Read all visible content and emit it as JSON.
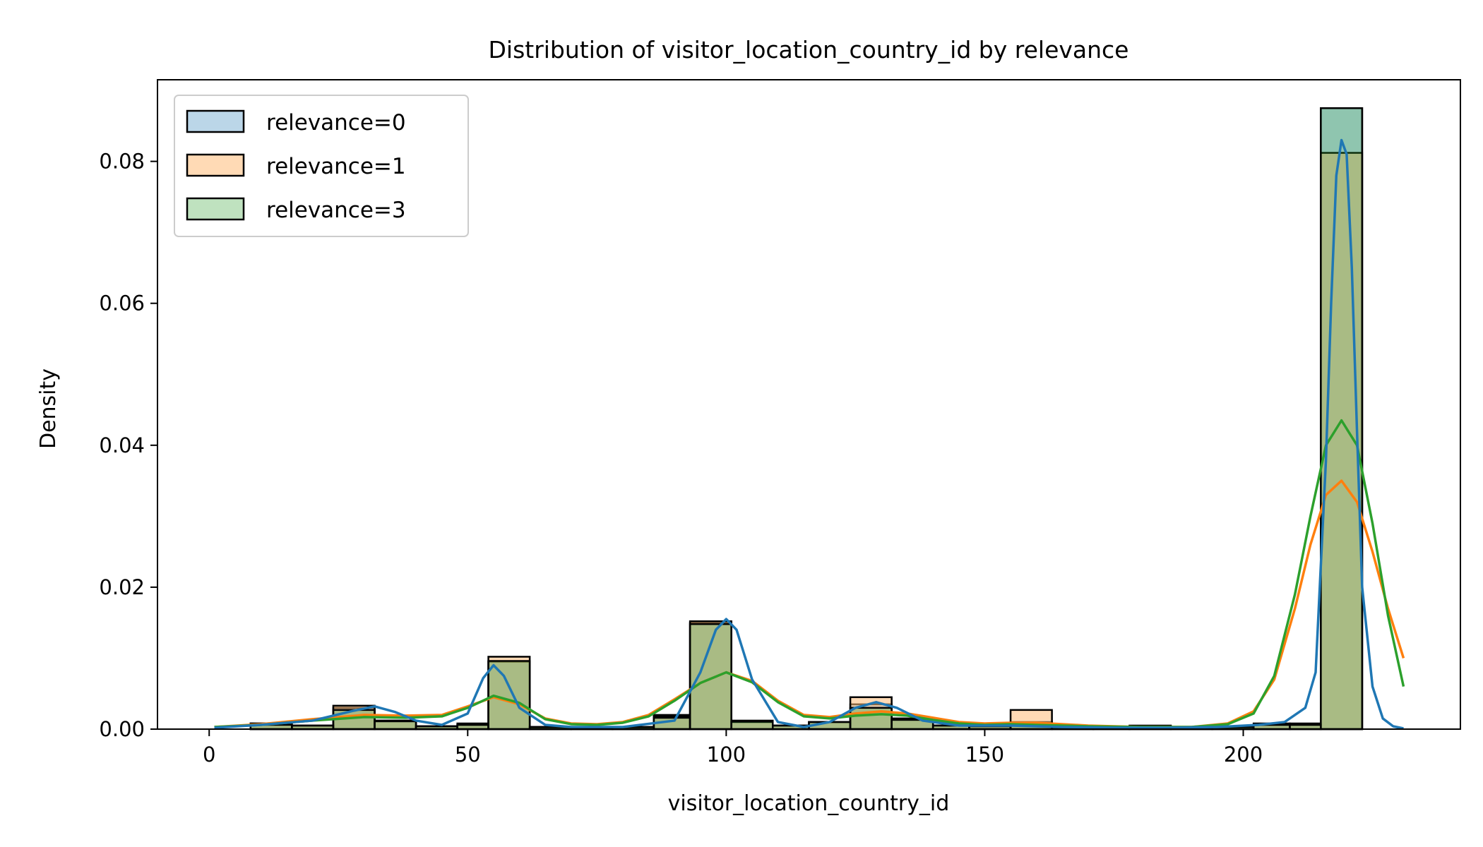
{
  "chart_data": {
    "type": "histogram",
    "title": "Distribution of visitor_location_country_id by relevance",
    "xlabel": "visitor_location_country_id",
    "ylabel": "Density",
    "xlim": [
      -10,
      242
    ],
    "ylim": [
      0,
      0.0915
    ],
    "x_ticks": [
      0,
      50,
      100,
      150,
      200
    ],
    "x_tick_labels": [
      "0",
      "50",
      "100",
      "150",
      "200"
    ],
    "y_ticks": [
      0.0,
      0.02,
      0.04,
      0.06,
      0.08
    ],
    "y_tick_labels": [
      "0.00",
      "0.02",
      "0.04",
      "0.06",
      "0.08"
    ],
    "grid": false,
    "legend_position": "upper-left",
    "series": [
      {
        "name": "relevance=0",
        "color": "#1f77b4",
        "fill": "#1f77b4",
        "bins": [
          {
            "x0": 8,
            "x1": 16,
            "y": 0.0008
          },
          {
            "x0": 16,
            "x1": 24,
            "y": 0.0005
          },
          {
            "x0": 24,
            "x1": 32,
            "y": 0.003
          },
          {
            "x0": 32,
            "x1": 40,
            "y": 0.0012
          },
          {
            "x0": 40,
            "x1": 48,
            "y": 0.0004
          },
          {
            "x0": 48,
            "x1": 54,
            "y": 0.0008
          },
          {
            "x0": 54,
            "x1": 62,
            "y": 0.0095
          },
          {
            "x0": 62,
            "x1": 70,
            "y": 0.0003
          },
          {
            "x0": 70,
            "x1": 78,
            "y": 0.0002
          },
          {
            "x0": 78,
            "x1": 86,
            "y": 0.0003
          },
          {
            "x0": 86,
            "x1": 93,
            "y": 0.002
          },
          {
            "x0": 93,
            "x1": 101,
            "y": 0.015
          },
          {
            "x0": 101,
            "x1": 109,
            "y": 0.0012
          },
          {
            "x0": 109,
            "x1": 116,
            "y": 0.0005
          },
          {
            "x0": 116,
            "x1": 124,
            "y": 0.001
          },
          {
            "x0": 124,
            "x1": 132,
            "y": 0.0035
          },
          {
            "x0": 132,
            "x1": 140,
            "y": 0.0015
          },
          {
            "x0": 140,
            "x1": 147,
            "y": 0.0005
          },
          {
            "x0": 147,
            "x1": 155,
            "y": 0.0005
          },
          {
            "x0": 155,
            "x1": 163,
            "y": 0.001
          },
          {
            "x0": 163,
            "x1": 171,
            "y": 0.0003
          },
          {
            "x0": 171,
            "x1": 178,
            "y": 0.0002
          },
          {
            "x0": 178,
            "x1": 186,
            "y": 0.0005
          },
          {
            "x0": 186,
            "x1": 194,
            "y": 0.0002
          },
          {
            "x0": 194,
            "x1": 202,
            "y": 0.0003
          },
          {
            "x0": 202,
            "x1": 209,
            "y": 0.0008
          },
          {
            "x0": 209,
            "x1": 215,
            "y": 0.0008
          },
          {
            "x0": 215,
            "x1": 223,
            "y": 0.0875
          }
        ],
        "kde": {
          "x": [
            1,
            10,
            20,
            28,
            32,
            36,
            40,
            45,
            50,
            53,
            55,
            57,
            60,
            65,
            70,
            80,
            90,
            95,
            98,
            100,
            102,
            105,
            110,
            115,
            120,
            125,
            129,
            133,
            138,
            145,
            155,
            165,
            175,
            185,
            195,
            203,
            208,
            212,
            214,
            216,
            217,
            218,
            219,
            220,
            221,
            222,
            223,
            225,
            227,
            229,
            231
          ],
          "y": [
            0.0002,
            0.0006,
            0.0012,
            0.0026,
            0.0032,
            0.0024,
            0.0012,
            0.0006,
            0.0022,
            0.0072,
            0.009,
            0.0075,
            0.003,
            0.0006,
            0.0003,
            0.0003,
            0.0012,
            0.008,
            0.014,
            0.0155,
            0.014,
            0.007,
            0.001,
            0.0003,
            0.001,
            0.003,
            0.0038,
            0.003,
            0.0012,
            0.0005,
            0.0005,
            0.0003,
            0.0002,
            0.0002,
            0.0003,
            0.0006,
            0.001,
            0.003,
            0.008,
            0.038,
            0.06,
            0.078,
            0.083,
            0.081,
            0.065,
            0.042,
            0.02,
            0.006,
            0.0015,
            0.0004,
            0.0001
          ]
        }
      },
      {
        "name": "relevance=1",
        "color": "#ff7f0e",
        "fill": "#ffbb78",
        "bins": [
          {
            "x0": 8,
            "x1": 16,
            "y": 0.0008
          },
          {
            "x0": 16,
            "x1": 24,
            "y": 0.0005
          },
          {
            "x0": 24,
            "x1": 32,
            "y": 0.0033
          },
          {
            "x0": 32,
            "x1": 40,
            "y": 0.0012
          },
          {
            "x0": 40,
            "x1": 48,
            "y": 0.0004
          },
          {
            "x0": 48,
            "x1": 54,
            "y": 0.0006
          },
          {
            "x0": 54,
            "x1": 62,
            "y": 0.0102
          },
          {
            "x0": 62,
            "x1": 70,
            "y": 0.0003
          },
          {
            "x0": 70,
            "x1": 78,
            "y": 0.0002
          },
          {
            "x0": 78,
            "x1": 86,
            "y": 0.0003
          },
          {
            "x0": 86,
            "x1": 93,
            "y": 0.0018
          },
          {
            "x0": 93,
            "x1": 101,
            "y": 0.0152
          },
          {
            "x0": 101,
            "x1": 109,
            "y": 0.001
          },
          {
            "x0": 109,
            "x1": 116,
            "y": 0.0005
          },
          {
            "x0": 116,
            "x1": 124,
            "y": 0.001
          },
          {
            "x0": 124,
            "x1": 132,
            "y": 0.0045
          },
          {
            "x0": 132,
            "x1": 140,
            "y": 0.0015
          },
          {
            "x0": 140,
            "x1": 147,
            "y": 0.0005
          },
          {
            "x0": 147,
            "x1": 155,
            "y": 0.0005
          },
          {
            "x0": 155,
            "x1": 163,
            "y": 0.0027
          },
          {
            "x0": 163,
            "x1": 171,
            "y": 0.0003
          },
          {
            "x0": 171,
            "x1": 178,
            "y": 0.0002
          },
          {
            "x0": 178,
            "x1": 186,
            "y": 0.0004
          },
          {
            "x0": 186,
            "x1": 194,
            "y": 0.0002
          },
          {
            "x0": 194,
            "x1": 202,
            "y": 0.0003
          },
          {
            "x0": 202,
            "x1": 209,
            "y": 0.0006
          },
          {
            "x0": 209,
            "x1": 215,
            "y": 0.0006
          },
          {
            "x0": 215,
            "x1": 223,
            "y": 0.0812
          }
        ],
        "kde": {
          "x": [
            1,
            10,
            20,
            30,
            38,
            45,
            50,
            55,
            60,
            65,
            70,
            75,
            80,
            85,
            90,
            95,
            100,
            105,
            110,
            115,
            120,
            125,
            130,
            135,
            140,
            145,
            150,
            155,
            160,
            170,
            180,
            190,
            197,
            202,
            206,
            210,
            213,
            216,
            219,
            222,
            225,
            228,
            231
          ],
          "y": [
            0.0003,
            0.0007,
            0.0014,
            0.002,
            0.0019,
            0.002,
            0.0032,
            0.0045,
            0.0035,
            0.0015,
            0.0008,
            0.0007,
            0.001,
            0.002,
            0.0042,
            0.0065,
            0.008,
            0.0068,
            0.004,
            0.002,
            0.0017,
            0.0022,
            0.0025,
            0.0022,
            0.0016,
            0.001,
            0.0008,
            0.0009,
            0.0009,
            0.0005,
            0.0003,
            0.0003,
            0.0008,
            0.0025,
            0.007,
            0.017,
            0.026,
            0.033,
            0.035,
            0.032,
            0.025,
            0.017,
            0.01
          ]
        }
      },
      {
        "name": "relevance=3",
        "color": "#2ca02c",
        "fill": "#2ca02c",
        "bins": [
          {
            "x0": 8,
            "x1": 16,
            "y": 0.0006
          },
          {
            "x0": 16,
            "x1": 24,
            "y": 0.0005
          },
          {
            "x0": 24,
            "x1": 32,
            "y": 0.0027
          },
          {
            "x0": 32,
            "x1": 40,
            "y": 0.0011
          },
          {
            "x0": 40,
            "x1": 48,
            "y": 0.0004
          },
          {
            "x0": 48,
            "x1": 54,
            "y": 0.0006
          },
          {
            "x0": 54,
            "x1": 62,
            "y": 0.0096
          },
          {
            "x0": 62,
            "x1": 70,
            "y": 0.0003
          },
          {
            "x0": 70,
            "x1": 78,
            "y": 0.0002
          },
          {
            "x0": 78,
            "x1": 86,
            "y": 0.0003
          },
          {
            "x0": 86,
            "x1": 93,
            "y": 0.0016
          },
          {
            "x0": 93,
            "x1": 101,
            "y": 0.0148
          },
          {
            "x0": 101,
            "x1": 109,
            "y": 0.0011
          },
          {
            "x0": 109,
            "x1": 116,
            "y": 0.0005
          },
          {
            "x0": 116,
            "x1": 124,
            "y": 0.001
          },
          {
            "x0": 124,
            "x1": 132,
            "y": 0.003
          },
          {
            "x0": 132,
            "x1": 140,
            "y": 0.0013
          },
          {
            "x0": 140,
            "x1": 147,
            "y": 0.0005
          },
          {
            "x0": 147,
            "x1": 155,
            "y": 0.0004
          },
          {
            "x0": 155,
            "x1": 163,
            "y": 0.0008
          },
          {
            "x0": 163,
            "x1": 171,
            "y": 0.0003
          },
          {
            "x0": 171,
            "x1": 178,
            "y": 0.0002
          },
          {
            "x0": 178,
            "x1": 186,
            "y": 0.0004
          },
          {
            "x0": 186,
            "x1": 194,
            "y": 0.0002
          },
          {
            "x0": 194,
            "x1": 202,
            "y": 0.0003
          },
          {
            "x0": 202,
            "x1": 209,
            "y": 0.0006
          },
          {
            "x0": 209,
            "x1": 215,
            "y": 0.0006
          },
          {
            "x0": 215,
            "x1": 223,
            "y": 0.0875
          }
        ],
        "kde": {
          "x": [
            1,
            10,
            20,
            30,
            38,
            45,
            50,
            55,
            60,
            65,
            70,
            75,
            80,
            85,
            90,
            95,
            100,
            105,
            110,
            115,
            120,
            125,
            130,
            135,
            140,
            145,
            150,
            155,
            160,
            170,
            180,
            190,
            197,
            202,
            206,
            210,
            213,
            216,
            219,
            222,
            225,
            228,
            231
          ],
          "y": [
            0.0003,
            0.0006,
            0.0012,
            0.0017,
            0.0016,
            0.0018,
            0.003,
            0.0047,
            0.0037,
            0.0014,
            0.0007,
            0.0006,
            0.0009,
            0.0018,
            0.004,
            0.0065,
            0.008,
            0.0066,
            0.0038,
            0.0018,
            0.0015,
            0.0019,
            0.0021,
            0.0019,
            0.0013,
            0.0008,
            0.0006,
            0.0007,
            0.0006,
            0.0004,
            0.0003,
            0.0003,
            0.0007,
            0.0022,
            0.0075,
            0.019,
            0.03,
            0.04,
            0.0435,
            0.04,
            0.029,
            0.016,
            0.006
          ]
        }
      }
    ]
  }
}
